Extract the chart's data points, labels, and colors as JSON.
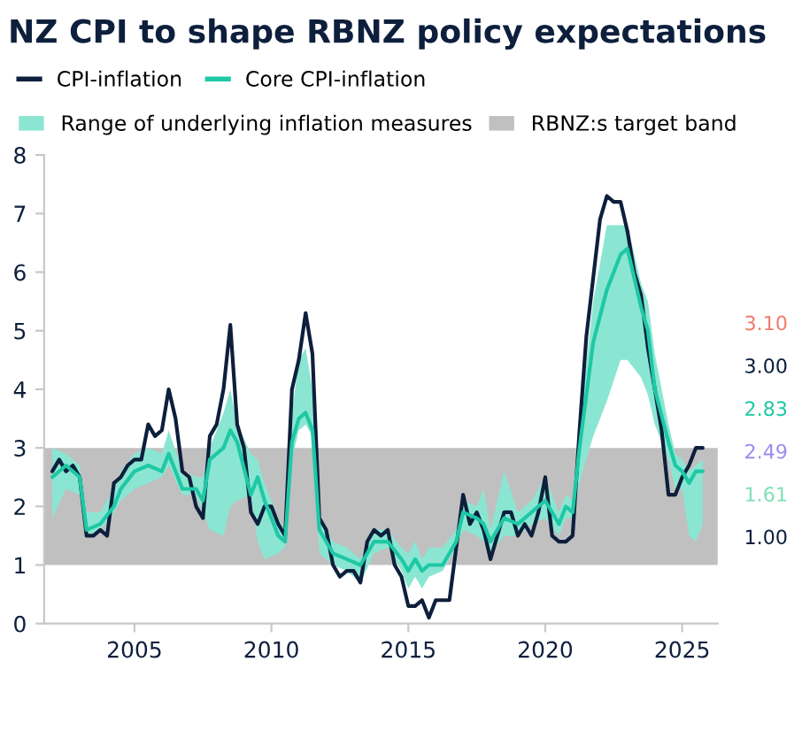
{
  "chart_data": {
    "type": "line",
    "title": "NZ CPI to shape RBNZ policy expectations",
    "series": [
      {
        "name": "CPI-inflation",
        "color": "#0d1f3c",
        "x": [
          2002.0,
          2002.25,
          2002.5,
          2002.75,
          2003.0,
          2003.25,
          2003.5,
          2003.75,
          2004.0,
          2004.25,
          2004.5,
          2004.75,
          2005.0,
          2005.25,
          2005.5,
          2005.75,
          2006.0,
          2006.25,
          2006.5,
          2006.75,
          2007.0,
          2007.25,
          2007.5,
          2007.75,
          2008.0,
          2008.25,
          2008.5,
          2008.75,
          2009.0,
          2009.25,
          2009.5,
          2009.75,
          2010.0,
          2010.25,
          2010.5,
          2010.75,
          2011.0,
          2011.25,
          2011.5,
          2011.75,
          2012.0,
          2012.25,
          2012.5,
          2012.75,
          2013.0,
          2013.25,
          2013.5,
          2013.75,
          2014.0,
          2014.25,
          2014.5,
          2014.75,
          2015.0,
          2015.25,
          2015.5,
          2015.75,
          2016.0,
          2016.25,
          2016.5,
          2016.75,
          2017.0,
          2017.25,
          2017.5,
          2017.75,
          2018.0,
          2018.25,
          2018.5,
          2018.75,
          2019.0,
          2019.25,
          2019.5,
          2019.75,
          2020.0,
          2020.25,
          2020.5,
          2020.75,
          2021.0,
          2021.25,
          2021.5,
          2021.75,
          2022.0,
          2022.25,
          2022.5,
          2022.75,
          2023.0,
          2023.25,
          2023.5,
          2023.75,
          2024.0,
          2024.25,
          2024.5,
          2024.75,
          2025.0,
          2025.25,
          2025.5,
          2025.75
        ],
        "values": [
          2.6,
          2.8,
          2.6,
          2.7,
          2.5,
          1.5,
          1.5,
          1.6,
          1.5,
          2.4,
          2.5,
          2.7,
          2.8,
          2.8,
          3.4,
          3.2,
          3.3,
          4.0,
          3.5,
          2.6,
          2.5,
          2.0,
          1.8,
          3.2,
          3.4,
          4.0,
          5.1,
          3.4,
          3.0,
          1.9,
          1.7,
          2.0,
          2.0,
          1.7,
          1.5,
          4.0,
          4.5,
          5.3,
          4.6,
          1.8,
          1.6,
          1.0,
          0.8,
          0.9,
          0.9,
          0.7,
          1.4,
          1.6,
          1.5,
          1.6,
          1.0,
          0.8,
          0.3,
          0.3,
          0.4,
          0.1,
          0.4,
          0.4,
          0.4,
          1.3,
          2.2,
          1.7,
          1.9,
          1.6,
          1.1,
          1.5,
          1.9,
          1.9,
          1.5,
          1.7,
          1.5,
          1.9,
          2.5,
          1.5,
          1.4,
          1.4,
          1.5,
          3.3,
          4.9,
          5.9,
          6.9,
          7.3,
          7.2,
          7.2,
          6.7,
          6.0,
          5.6,
          4.7,
          4.0,
          3.3,
          2.2,
          2.2,
          2.5,
          2.7,
          3.0,
          3.0
        ]
      },
      {
        "name": "Core CPI-inflation",
        "color": "#1ec8a5",
        "x": [
          2002.0,
          2002.5,
          2003.0,
          2003.25,
          2003.75,
          2004.25,
          2004.5,
          2005.0,
          2005.5,
          2006.0,
          2006.25,
          2006.75,
          2007.25,
          2007.5,
          2007.75,
          2008.25,
          2008.5,
          2008.75,
          2009.25,
          2009.5,
          2009.75,
          2010.25,
          2010.5,
          2010.75,
          2011.0,
          2011.25,
          2011.5,
          2011.75,
          2012.25,
          2012.75,
          2013.25,
          2013.75,
          2014.25,
          2014.75,
          2015.0,
          2015.25,
          2015.5,
          2015.75,
          2016.25,
          2016.75,
          2017.0,
          2017.5,
          2017.75,
          2018.0,
          2018.5,
          2019.0,
          2019.5,
          2020.0,
          2020.5,
          2020.75,
          2021.0,
          2021.25,
          2021.75,
          2022.25,
          2022.75,
          2023.0,
          2023.5,
          2023.75,
          2024.0,
          2024.5,
          2024.75,
          2025.0,
          2025.25,
          2025.5,
          2025.75
        ],
        "values": [
          2.5,
          2.7,
          2.5,
          1.6,
          1.7,
          2.0,
          2.3,
          2.6,
          2.7,
          2.6,
          2.9,
          2.3,
          2.3,
          2.1,
          2.8,
          3.0,
          3.3,
          3.1,
          2.2,
          2.5,
          2.1,
          1.5,
          1.4,
          3.1,
          3.5,
          3.6,
          3.3,
          1.6,
          1.2,
          1.1,
          1.0,
          1.4,
          1.4,
          1.1,
          0.9,
          1.1,
          0.9,
          1.0,
          1.0,
          1.4,
          1.9,
          1.8,
          1.7,
          1.4,
          1.8,
          1.7,
          1.9,
          2.1,
          1.7,
          2.0,
          1.9,
          3.0,
          4.8,
          5.7,
          6.3,
          6.4,
          5.4,
          5.0,
          4.0,
          3.1,
          2.7,
          2.6,
          2.4,
          2.6,
          2.6
        ],
        "lower": [
          1.8,
          2.3,
          2.2,
          1.5,
          1.6,
          1.9,
          2.1,
          2.3,
          2.4,
          2.5,
          2.7,
          2.2,
          2.2,
          1.9,
          1.6,
          1.5,
          2.0,
          2.1,
          2.2,
          1.4,
          1.1,
          1.2,
          1.3,
          2.8,
          3.3,
          3.4,
          3.2,
          1.2,
          1.0,
          0.9,
          0.7,
          1.2,
          1.3,
          0.9,
          0.6,
          0.8,
          0.6,
          0.8,
          0.9,
          1.3,
          1.6,
          1.5,
          1.4,
          1.2,
          1.5,
          1.5,
          1.7,
          1.8,
          1.5,
          1.8,
          1.8,
          2.4,
          3.2,
          3.8,
          4.5,
          4.5,
          4.2,
          3.9,
          3.4,
          2.8,
          2.3,
          2.3,
          1.5,
          1.4,
          1.7
        ],
        "upper": [
          3.0,
          2.9,
          2.7,
          1.9,
          1.9,
          2.3,
          2.6,
          2.9,
          3.0,
          2.9,
          3.3,
          2.6,
          2.5,
          2.5,
          3.0,
          3.6,
          4.0,
          3.4,
          2.9,
          2.8,
          2.4,
          1.8,
          1.6,
          3.6,
          4.5,
          4.7,
          4.0,
          1.8,
          1.4,
          1.3,
          1.1,
          1.6,
          1.6,
          1.3,
          1.2,
          1.4,
          1.1,
          1.3,
          1.3,
          1.6,
          2.1,
          2.0,
          2.3,
          1.6,
          2.6,
          1.9,
          2.1,
          2.5,
          1.9,
          2.2,
          2.1,
          3.4,
          5.5,
          6.8,
          6.8,
          6.8,
          5.8,
          5.5,
          4.6,
          3.4,
          2.9,
          2.8,
          2.6,
          2.7,
          2.8
        ]
      }
    ],
    "bands": [
      {
        "axis": "y",
        "from": 1,
        "to": 3,
        "label": "RBNZ:s target band",
        "color": "#c0c0c0"
      }
    ],
    "annotations": [
      "Range of underlying inflation measures",
      "3.10",
      "3.00",
      "2.83",
      "2.49",
      "1.61",
      "1.00"
    ],
    "xlim": [
      2001.7,
      2026.3
    ],
    "xticks": [
      2005,
      2010,
      2015,
      2020,
      2025
    ],
    "ylim": [
      0,
      8
    ],
    "yticks": [
      0,
      1,
      2,
      3,
      4,
      5,
      6,
      7,
      8
    ],
    "grid": false,
    "legend": "top"
  }
}
